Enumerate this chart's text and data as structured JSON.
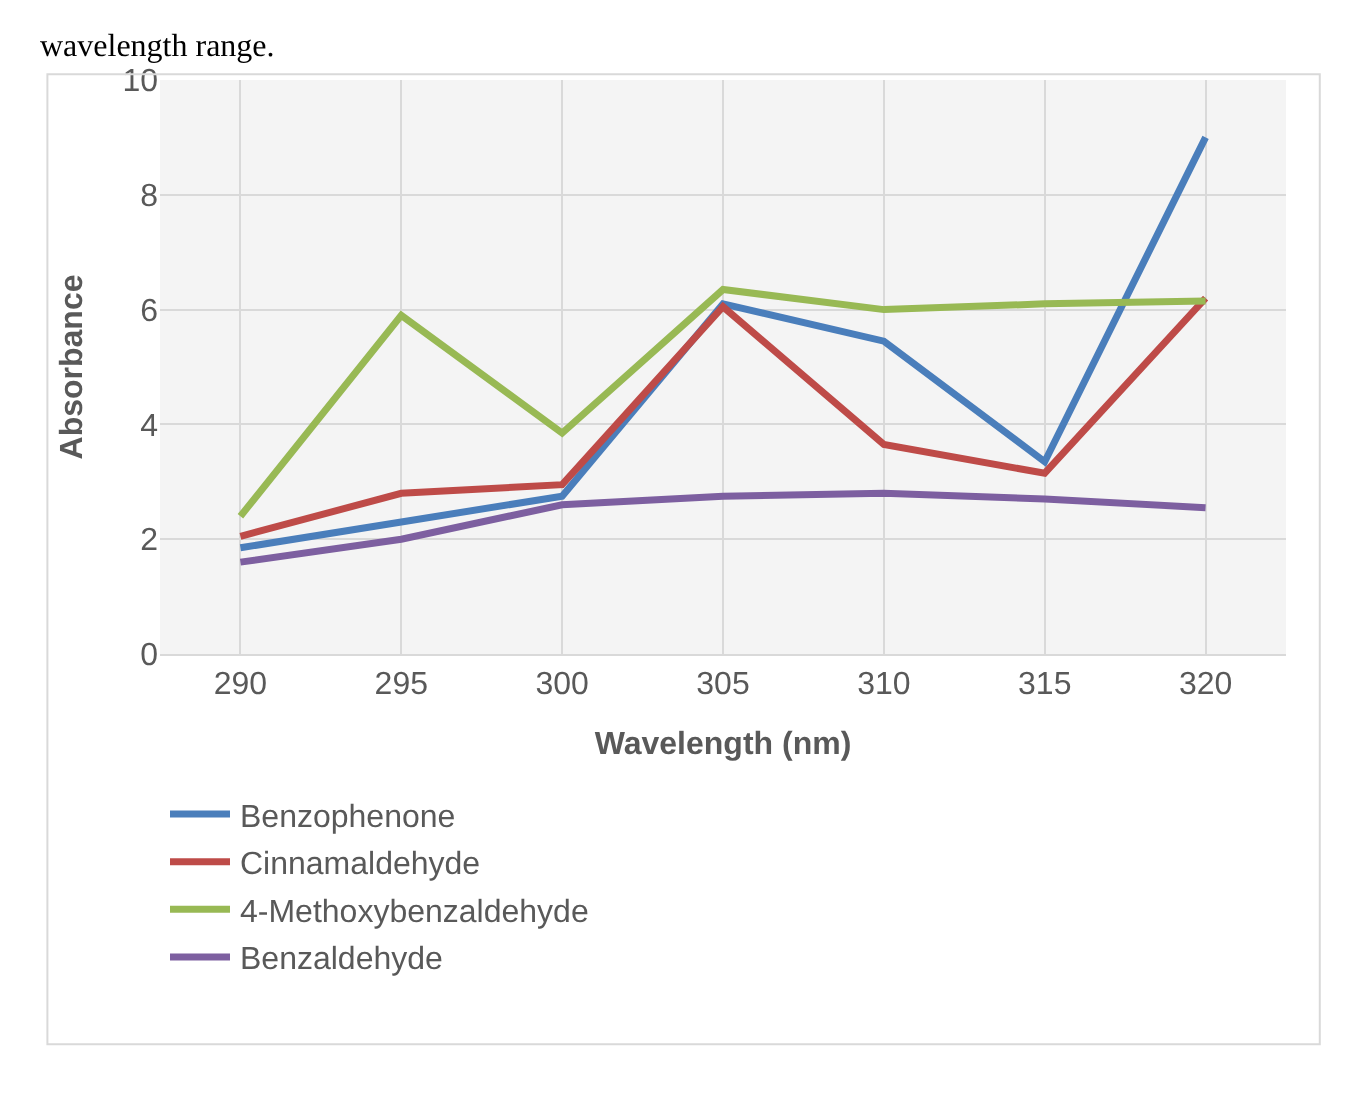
{
  "chart_data": {
    "type": "line",
    "xlabel": "Wavelength (nm)",
    "ylabel": "Absorbance",
    "annotations": [
      "wavelength range."
    ],
    "categories": [
      "290",
      "295",
      "300",
      "305",
      "310",
      "315",
      "320"
    ],
    "ylim": [
      0,
      10
    ],
    "yticks": [
      0,
      2,
      4,
      6,
      8,
      10
    ],
    "grid": true,
    "legend": "bottom",
    "marker": "none",
    "line_style": "solid",
    "series": [
      {
        "name": "Benzophenone",
        "color": "#4a7ebb",
        "values": [
          1.85,
          2.3,
          2.75,
          6.1,
          5.45,
          3.35,
          9.0
        ]
      },
      {
        "name": "Cinnamaldehyde",
        "color": "#be4b48",
        "values": [
          2.05,
          2.8,
          2.95,
          6.05,
          3.65,
          3.15,
          6.2
        ]
      },
      {
        "name": "4-Methoxybenzaldehyde",
        "color": "#98b954",
        "values": [
          2.4,
          5.9,
          3.85,
          6.35,
          6.0,
          6.1,
          6.15
        ]
      },
      {
        "name": "Benzaldehyde",
        "color": "#7d5fa0",
        "values": [
          1.6,
          2.0,
          2.6,
          2.75,
          2.8,
          2.7,
          2.55
        ]
      }
    ]
  }
}
